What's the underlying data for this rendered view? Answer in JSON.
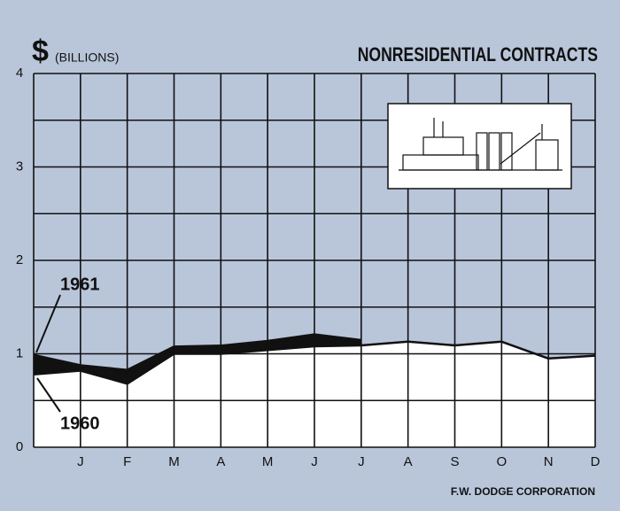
{
  "chart_data": {
    "type": "line",
    "title": "NONRESIDENTIAL CONTRACTS",
    "currency_symbol": "$",
    "unit": "(BILLIONS)",
    "source": "F.W. DODGE CORPORATION",
    "categories": [
      null,
      "J",
      "F",
      "M",
      "A",
      "M",
      "J",
      "J",
      "A",
      "S",
      "O",
      "N",
      "D"
    ],
    "series": [
      {
        "name": "1961",
        "color": "#111111",
        "values": [
          0.98,
          0.87,
          0.82,
          1.07,
          1.08,
          1.13,
          1.2,
          1.14,
          null,
          null,
          null,
          null,
          null
        ]
      },
      {
        "name": "1960",
        "color": "#111111",
        "values": [
          0.78,
          0.82,
          0.68,
          1.0,
          1.0,
          1.04,
          1.08,
          1.09,
          1.13,
          1.09,
          1.13,
          0.95,
          0.98
        ]
      }
    ],
    "ylim": [
      0,
      4
    ],
    "yticks": [
      0,
      1,
      2,
      3,
      4
    ],
    "grid": true
  }
}
